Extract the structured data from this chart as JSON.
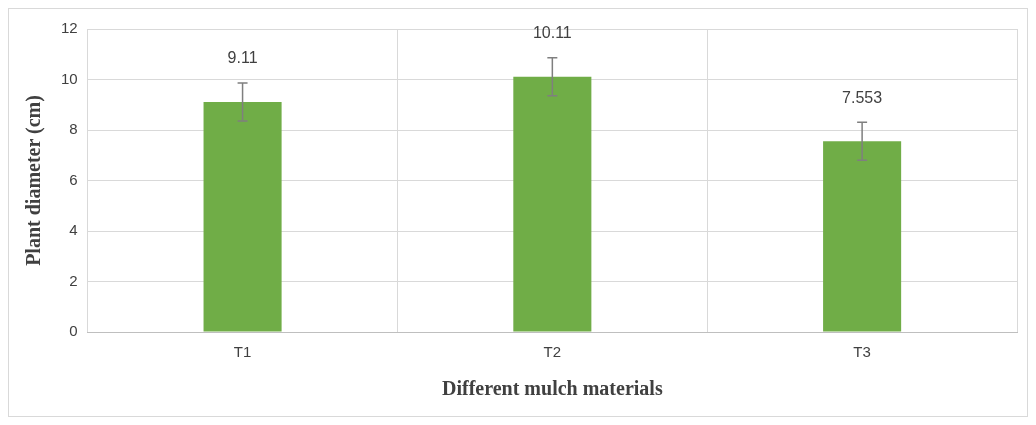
{
  "chart_data": {
    "type": "bar",
    "xlabel": "Different mulch materials",
    "ylabel": "Plant diameter (cm)",
    "categories": [
      "T1",
      "T2",
      "T3"
    ],
    "values": [
      9.11,
      10.11,
      7.553
    ],
    "errors": [
      0.75,
      0.75,
      0.75
    ],
    "color": "#70ad47",
    "ylim": [
      0,
      12
    ],
    "yticks": [
      0,
      2,
      4,
      6,
      8,
      10,
      12
    ],
    "grid": true,
    "data_labels": true,
    "legend": false
  }
}
